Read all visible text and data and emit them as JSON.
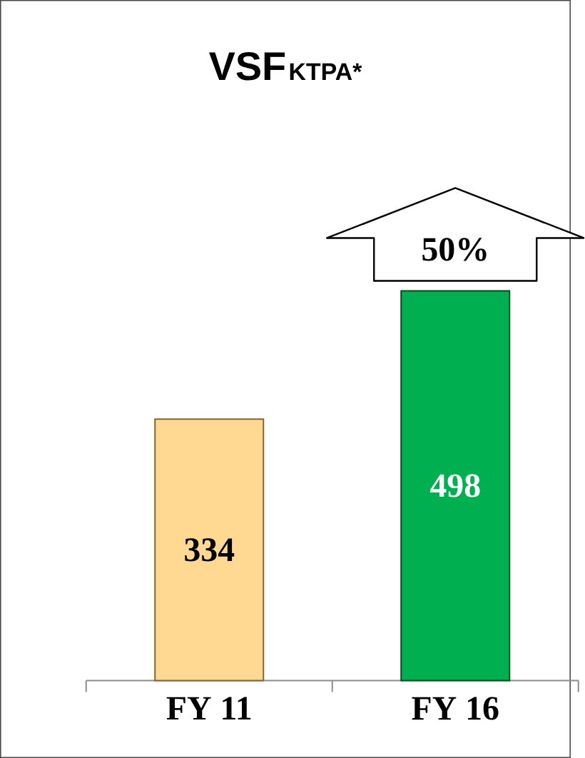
{
  "chart_data": {
    "type": "bar",
    "title": "VSF",
    "subtitle": "KTPA*",
    "categories": [
      "FY 11",
      "FY 16"
    ],
    "values": [
      334,
      498
    ],
    "colors": [
      "#ffd991",
      "#00b050"
    ],
    "data_labels": true,
    "annotations": [
      "50%"
    ]
  }
}
